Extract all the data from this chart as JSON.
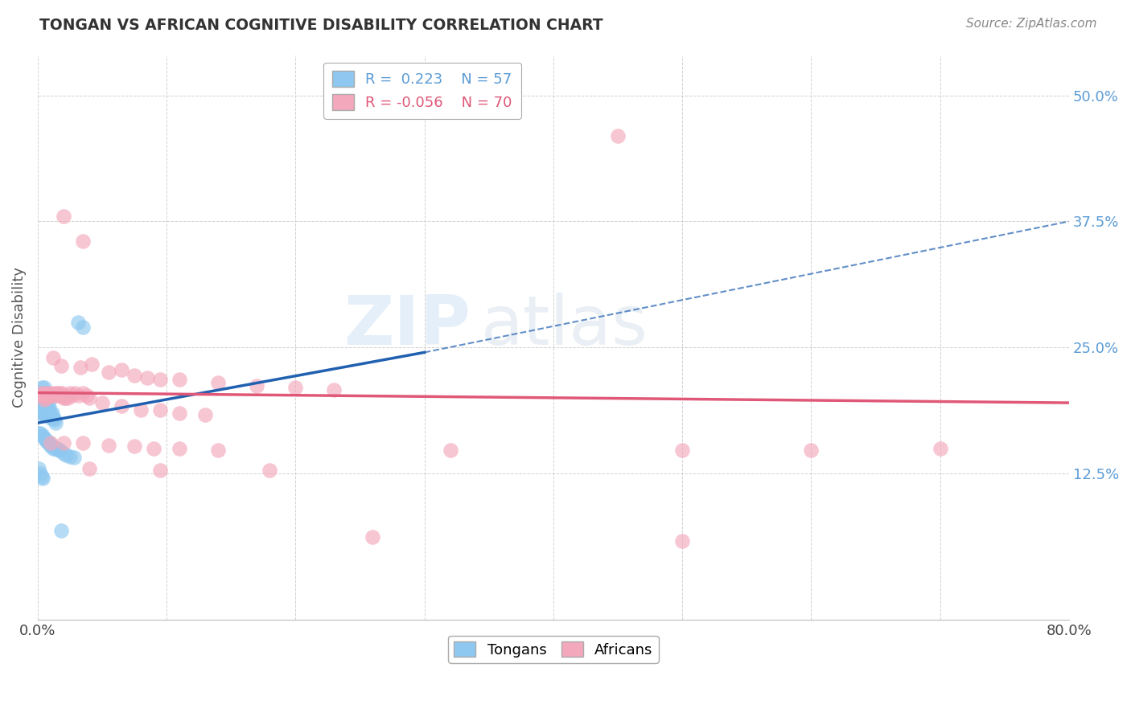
{
  "title": "TONGAN VS AFRICAN COGNITIVE DISABILITY CORRELATION CHART",
  "source": "Source: ZipAtlas.com",
  "ylabel": "Cognitive Disability",
  "ytick_labels": [
    "12.5%",
    "25.0%",
    "37.5%",
    "50.0%"
  ],
  "ytick_values": [
    0.125,
    0.25,
    0.375,
    0.5
  ],
  "xlim": [
    0.0,
    0.8
  ],
  "ylim": [
    -0.02,
    0.54
  ],
  "legend_r_tongan": "R =  0.223",
  "legend_n_tongan": "N = 57",
  "legend_r_african": "R = -0.056",
  "legend_n_african": "N = 70",
  "tongan_color": "#8EC8F0",
  "african_color": "#F4A8BC",
  "tongan_line_color": "#2060B0",
  "african_line_color": "#E05878",
  "watermark_zip": "ZIP",
  "watermark_atlas": "atlas",
  "background_color": "#ffffff",
  "tongan_points": [
    [
      0.001,
      0.205
    ],
    [
      0.001,
      0.195
    ],
    [
      0.002,
      0.2
    ],
    [
      0.002,
      0.19
    ],
    [
      0.002,
      0.185
    ],
    [
      0.003,
      0.21
    ],
    [
      0.003,
      0.2
    ],
    [
      0.003,
      0.195
    ],
    [
      0.003,
      0.185
    ],
    [
      0.004,
      0.205
    ],
    [
      0.004,
      0.195
    ],
    [
      0.004,
      0.185
    ],
    [
      0.005,
      0.21
    ],
    [
      0.005,
      0.2
    ],
    [
      0.005,
      0.195
    ],
    [
      0.005,
      0.185
    ],
    [
      0.006,
      0.205
    ],
    [
      0.006,
      0.195
    ],
    [
      0.006,
      0.185
    ],
    [
      0.007,
      0.2
    ],
    [
      0.007,
      0.19
    ],
    [
      0.008,
      0.195
    ],
    [
      0.008,
      0.185
    ],
    [
      0.009,
      0.19
    ],
    [
      0.01,
      0.185
    ],
    [
      0.01,
      0.18
    ],
    [
      0.011,
      0.185
    ],
    [
      0.012,
      0.18
    ],
    [
      0.013,
      0.178
    ],
    [
      0.014,
      0.175
    ],
    [
      0.001,
      0.165
    ],
    [
      0.002,
      0.165
    ],
    [
      0.003,
      0.162
    ],
    [
      0.004,
      0.162
    ],
    [
      0.005,
      0.16
    ],
    [
      0.006,
      0.158
    ],
    [
      0.007,
      0.158
    ],
    [
      0.008,
      0.155
    ],
    [
      0.009,
      0.155
    ],
    [
      0.01,
      0.152
    ],
    [
      0.011,
      0.152
    ],
    [
      0.012,
      0.15
    ],
    [
      0.014,
      0.15
    ],
    [
      0.015,
      0.15
    ],
    [
      0.016,
      0.148
    ],
    [
      0.017,
      0.148
    ],
    [
      0.02,
      0.145
    ],
    [
      0.022,
      0.143
    ],
    [
      0.025,
      0.142
    ],
    [
      0.028,
      0.141
    ],
    [
      0.031,
      0.275
    ],
    [
      0.035,
      0.27
    ],
    [
      0.001,
      0.13
    ],
    [
      0.002,
      0.125
    ],
    [
      0.003,
      0.122
    ],
    [
      0.004,
      0.12
    ],
    [
      0.018,
      0.068
    ]
  ],
  "african_points": [
    [
      0.002,
      0.205
    ],
    [
      0.003,
      0.202
    ],
    [
      0.004,
      0.202
    ],
    [
      0.005,
      0.205
    ],
    [
      0.005,
      0.198
    ],
    [
      0.006,
      0.202
    ],
    [
      0.007,
      0.2
    ],
    [
      0.008,
      0.205
    ],
    [
      0.009,
      0.202
    ],
    [
      0.01,
      0.205
    ],
    [
      0.011,
      0.202
    ],
    [
      0.012,
      0.202
    ],
    [
      0.013,
      0.205
    ],
    [
      0.014,
      0.202
    ],
    [
      0.015,
      0.205
    ],
    [
      0.016,
      0.202
    ],
    [
      0.017,
      0.205
    ],
    [
      0.018,
      0.202
    ],
    [
      0.019,
      0.205
    ],
    [
      0.02,
      0.2
    ],
    [
      0.021,
      0.2
    ],
    [
      0.022,
      0.202
    ],
    [
      0.023,
      0.2
    ],
    [
      0.025,
      0.205
    ],
    [
      0.027,
      0.202
    ],
    [
      0.029,
      0.205
    ],
    [
      0.032,
      0.202
    ],
    [
      0.035,
      0.205
    ],
    [
      0.038,
      0.202
    ],
    [
      0.04,
      0.2
    ],
    [
      0.012,
      0.24
    ],
    [
      0.018,
      0.232
    ],
    [
      0.033,
      0.23
    ],
    [
      0.042,
      0.233
    ],
    [
      0.055,
      0.225
    ],
    [
      0.065,
      0.228
    ],
    [
      0.075,
      0.222
    ],
    [
      0.085,
      0.22
    ],
    [
      0.095,
      0.218
    ],
    [
      0.11,
      0.218
    ],
    [
      0.14,
      0.215
    ],
    [
      0.17,
      0.212
    ],
    [
      0.2,
      0.21
    ],
    [
      0.23,
      0.208
    ],
    [
      0.05,
      0.195
    ],
    [
      0.065,
      0.192
    ],
    [
      0.08,
      0.188
    ],
    [
      0.095,
      0.188
    ],
    [
      0.11,
      0.185
    ],
    [
      0.13,
      0.183
    ],
    [
      0.02,
      0.38
    ],
    [
      0.035,
      0.355
    ],
    [
      0.01,
      0.155
    ],
    [
      0.02,
      0.155
    ],
    [
      0.035,
      0.155
    ],
    [
      0.055,
      0.153
    ],
    [
      0.075,
      0.152
    ],
    [
      0.09,
      0.15
    ],
    [
      0.11,
      0.15
    ],
    [
      0.14,
      0.148
    ],
    [
      0.32,
      0.148
    ],
    [
      0.5,
      0.148
    ],
    [
      0.6,
      0.148
    ],
    [
      0.7,
      0.15
    ],
    [
      0.04,
      0.13
    ],
    [
      0.095,
      0.128
    ],
    [
      0.18,
      0.128
    ],
    [
      0.45,
      0.46
    ],
    [
      0.26,
      0.062
    ],
    [
      0.5,
      0.058
    ]
  ]
}
